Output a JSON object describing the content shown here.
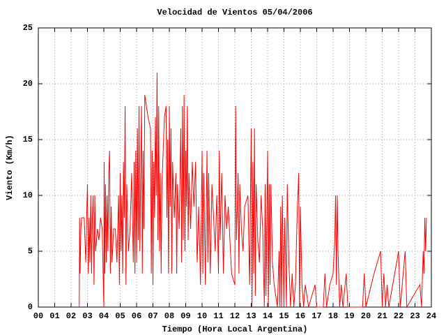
{
  "chart_data": {
    "type": "line",
    "title": "Velocidad de Vientos 05/04/2006",
    "xlabel": "Tiempo (Hora Local Argentina)",
    "ylabel": "Viento (Km/h)",
    "color": "#ff0000",
    "grid": true,
    "xlim": [
      0,
      24
    ],
    "ylim": [
      0,
      25
    ],
    "xticks": [
      {
        "value": 0,
        "label": "00"
      },
      {
        "value": 1,
        "label": "01"
      },
      {
        "value": 2,
        "label": "02"
      },
      {
        "value": 3,
        "label": "03"
      },
      {
        "value": 4,
        "label": "04"
      },
      {
        "value": 5,
        "label": "05"
      },
      {
        "value": 6,
        "label": "06"
      },
      {
        "value": 7,
        "label": "07"
      },
      {
        "value": 8,
        "label": "08"
      },
      {
        "value": 9,
        "label": "09"
      },
      10,
      11,
      12,
      13,
      14,
      15,
      16,
      17,
      18,
      19,
      20,
      21,
      22,
      23,
      24
    ],
    "yticks": [
      0,
      5,
      10,
      15,
      20,
      25
    ],
    "x": [
      2.5,
      2.52,
      2.55,
      2.6,
      2.65,
      2.8,
      2.9,
      2.95,
      3.0,
      3.05,
      3.1,
      3.15,
      3.2,
      3.25,
      3.3,
      3.35,
      3.4,
      3.45,
      3.5,
      3.6,
      3.7,
      3.8,
      3.9,
      4.0,
      4.02,
      4.05,
      4.1,
      4.15,
      4.2,
      4.25,
      4.3,
      4.35,
      4.4,
      4.45,
      4.5,
      4.6,
      4.7,
      4.8,
      4.9,
      4.95,
      5.0,
      5.05,
      5.1,
      5.15,
      5.2,
      5.25,
      5.3,
      5.35,
      5.4,
      5.5,
      5.6,
      5.7,
      5.8,
      5.85,
      5.9,
      5.95,
      6.0,
      6.05,
      6.1,
      6.15,
      6.2,
      6.25,
      6.3,
      6.35,
      6.4,
      6.45,
      6.5,
      6.6,
      6.7,
      6.85,
      6.9,
      6.95,
      7.0,
      7.05,
      7.1,
      7.15,
      7.2,
      7.25,
      7.3,
      7.35,
      7.4,
      7.45,
      7.5,
      7.55,
      7.6,
      7.7,
      7.8,
      7.85,
      7.9,
      7.95,
      8.0,
      8.05,
      8.1,
      8.15,
      8.2,
      8.3,
      8.4,
      8.45,
      8.5,
      8.6,
      8.7,
      8.75,
      8.8,
      8.85,
      8.9,
      8.95,
      9.0,
      9.05,
      9.1,
      9.15,
      9.2,
      9.3,
      9.4,
      9.5,
      9.6,
      9.7,
      9.8,
      9.9,
      10.0,
      10.05,
      10.1,
      10.2,
      10.3,
      10.35,
      10.4,
      10.5,
      10.6,
      10.7,
      10.8,
      10.9,
      11.0,
      11.05,
      11.1,
      11.2,
      11.3,
      11.4,
      11.5,
      11.6,
      11.7,
      11.8,
      12.0,
      12.05,
      12.1,
      12.2,
      12.25,
      12.3,
      12.4,
      12.5,
      12.6,
      12.8,
      12.9,
      13.0,
      13.05,
      13.1,
      13.15,
      13.2,
      13.25,
      13.3,
      13.4,
      13.5,
      13.6,
      13.7,
      13.8,
      13.85,
      13.9,
      14.0,
      14.05,
      14.1,
      14.15,
      14.2,
      14.3,
      14.4,
      14.5,
      14.6,
      14.7,
      14.75,
      14.8,
      14.85,
      14.9,
      15.0,
      15.05,
      15.1,
      15.15,
      15.2,
      15.3,
      15.4,
      15.5,
      15.6,
      15.7,
      15.8,
      15.9,
      15.95,
      16.0,
      16.1,
      16.2,
      16.3,
      16.5,
      16.9,
      17.0,
      17.4,
      17.5,
      17.6,
      17.8,
      18.0,
      18.1,
      18.15,
      18.2,
      18.25,
      18.3,
      18.4,
      18.5,
      18.6,
      18.8,
      18.9,
      19.8,
      19.9,
      20.0,
      20.5,
      20.9,
      21.0,
      21.1,
      21.2,
      21.3,
      21.4,
      22.0,
      22.1,
      22.4,
      22.5,
      23.3,
      23.4,
      23.5,
      23.55,
      23.6,
      23.65,
      23.7
    ],
    "values": [
      0,
      8,
      3,
      7,
      8,
      8,
      4,
      8,
      11,
      3,
      8,
      4,
      10,
      3,
      8,
      10,
      2,
      10,
      5,
      7,
      6,
      8,
      7,
      0,
      13,
      3,
      11,
      4,
      10,
      5,
      12,
      14,
      3,
      9,
      4,
      7,
      7,
      4,
      10,
      2,
      12,
      5,
      10,
      3,
      13,
      8,
      18,
      2,
      11,
      5,
      7,
      12,
      4,
      13,
      3,
      14,
      4,
      16,
      6,
      18,
      5,
      12,
      18,
      3,
      14,
      7,
      19,
      18,
      17,
      16,
      3,
      14,
      2,
      13,
      8,
      17,
      10,
      21,
      6,
      18,
      5,
      12,
      3,
      11,
      13,
      17,
      18,
      8,
      15,
      3,
      18,
      9,
      16,
      3,
      13,
      8,
      12,
      3,
      11,
      7,
      16,
      4,
      18,
      6,
      19,
      5,
      14,
      9,
      18,
      6,
      12,
      7,
      13,
      9,
      13,
      4,
      9,
      2,
      14,
      3,
      12,
      2,
      14,
      4,
      12,
      3,
      11,
      8,
      5,
      10,
      3,
      14,
      6,
      12,
      3,
      10,
      7,
      9,
      6,
      3,
      2,
      18,
      6,
      12,
      3,
      11,
      7,
      5,
      9,
      10,
      2,
      16,
      0,
      13,
      3,
      16,
      1,
      11,
      6,
      4,
      10,
      7,
      0,
      11,
      1,
      14,
      0,
      11,
      2,
      11,
      4,
      2,
      1,
      0,
      5,
      0,
      9,
      0,
      10,
      0,
      8,
      4,
      0,
      11,
      4,
      0,
      3,
      0,
      2,
      8,
      12,
      0,
      9,
      2,
      0,
      2,
      0,
      2,
      0,
      0,
      3,
      0,
      2,
      3,
      6,
      10,
      2,
      10,
      5,
      0,
      2,
      0,
      3,
      0,
      0,
      3,
      0,
      3,
      5,
      0,
      3,
      0,
      2,
      0,
      5,
      0,
      5,
      0,
      2,
      0,
      5,
      3,
      8,
      5,
      8
    ]
  }
}
